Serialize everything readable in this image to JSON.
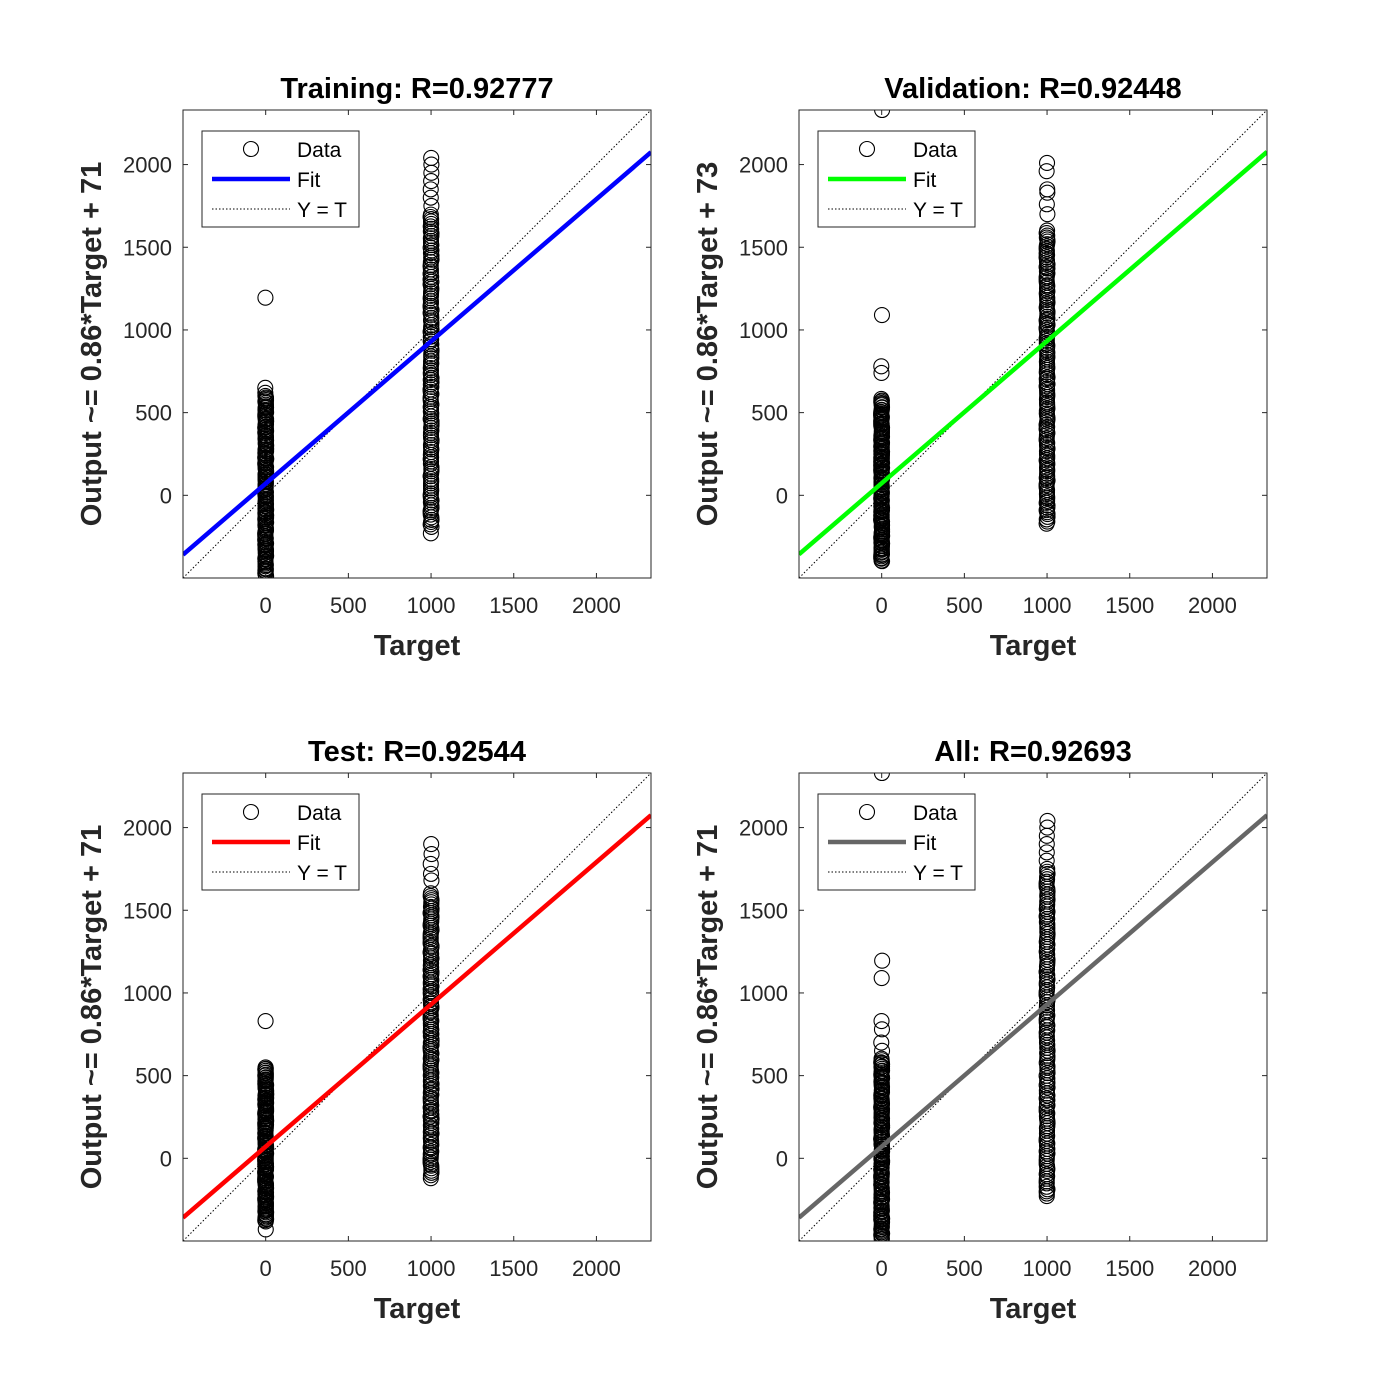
{
  "figure": {
    "background": "#ffffff",
    "axis_color": "#262626"
  },
  "chart_data": [
    {
      "type": "scatter",
      "title": "Training: R=0.92777",
      "xlabel": "Target",
      "ylabel": "Output ~= 0.86*Target + 71",
      "xlim": [
        -500,
        2330
      ],
      "ylim": [
        -500,
        2330
      ],
      "xticks": [
        0,
        500,
        1000,
        1500,
        2000
      ],
      "yticks": [
        0,
        500,
        1000,
        1500,
        2000
      ],
      "fit": {
        "slope": 0.86,
        "intercept": 71,
        "color": "#0000ff"
      },
      "identity_line": true,
      "legend": {
        "position": "top-left",
        "entries": [
          "Data",
          "Fit",
          "Y = T"
        ]
      },
      "series": [
        {
          "target": 0,
          "output_range": [
            -490,
            600
          ],
          "outliers": [
            620,
            650,
            1195
          ]
        },
        {
          "target": 1000,
          "output_range": [
            -190,
            1700
          ],
          "outliers": [
            -230,
            1750,
            1800,
            1850,
            1900,
            1950,
            2000,
            2040
          ]
        }
      ]
    },
    {
      "type": "scatter",
      "title": "Validation: R=0.92448",
      "xlabel": "Target",
      "ylabel": "Output ~= 0.86*Target + 73",
      "xlim": [
        -500,
        2330
      ],
      "ylim": [
        -500,
        2330
      ],
      "xticks": [
        0,
        500,
        1000,
        1500,
        2000
      ],
      "yticks": [
        0,
        500,
        1000,
        1500,
        2000
      ],
      "fit": {
        "slope": 0.86,
        "intercept": 73,
        "color": "#00ff00"
      },
      "identity_line": true,
      "legend": {
        "position": "top-left",
        "entries": [
          "Data",
          "Fit",
          "Y = T"
        ]
      },
      "series": [
        {
          "target": 0,
          "output_range": [
            -400,
            580
          ],
          "outliers": [
            740,
            780,
            1090,
            2330
          ]
        },
        {
          "target": 1000,
          "output_range": [
            -170,
            1600
          ],
          "outliers": [
            1700,
            1760,
            1830,
            1850,
            1960,
            2010
          ]
        }
      ]
    },
    {
      "type": "scatter",
      "title": "Test: R=0.92544",
      "xlabel": "Target",
      "ylabel": "Output ~= 0.86*Target + 71",
      "xlim": [
        -500,
        2330
      ],
      "ylim": [
        -500,
        2330
      ],
      "xticks": [
        0,
        500,
        1000,
        1500,
        2000
      ],
      "yticks": [
        0,
        500,
        1000,
        1500,
        2000
      ],
      "fit": {
        "slope": 0.86,
        "intercept": 71,
        "color": "#ff0000"
      },
      "identity_line": true,
      "legend": {
        "position": "top-left",
        "entries": [
          "Data",
          "Fit",
          "Y = T"
        ]
      },
      "series": [
        {
          "target": 0,
          "output_range": [
            -380,
            550
          ],
          "outliers": [
            -430,
            830
          ]
        },
        {
          "target": 1000,
          "output_range": [
            -100,
            1600
          ],
          "outliers": [
            -120,
            1680,
            1720,
            1780,
            1840,
            1900
          ]
        }
      ]
    },
    {
      "type": "scatter",
      "title": "All: R=0.92693",
      "xlabel": "Target",
      "ylabel": "Output ~= 0.86*Target + 71",
      "xlim": [
        -500,
        2330
      ],
      "ylim": [
        -500,
        2330
      ],
      "xticks": [
        0,
        500,
        1000,
        1500,
        2000
      ],
      "yticks": [
        0,
        500,
        1000,
        1500,
        2000
      ],
      "fit": {
        "slope": 0.86,
        "intercept": 71,
        "color": "#666666"
      },
      "identity_line": true,
      "legend": {
        "position": "top-left",
        "entries": [
          "Data",
          "Fit",
          "Y = T"
        ]
      },
      "series": [
        {
          "target": 0,
          "output_range": [
            -490,
            600
          ],
          "outliers": [
            650,
            700,
            780,
            830,
            1090,
            1195,
            2330
          ]
        },
        {
          "target": 1000,
          "output_range": [
            -230,
            1750
          ],
          "outliers": [
            1800,
            1850,
            1900,
            1950,
            2000,
            2040
          ]
        }
      ]
    }
  ]
}
